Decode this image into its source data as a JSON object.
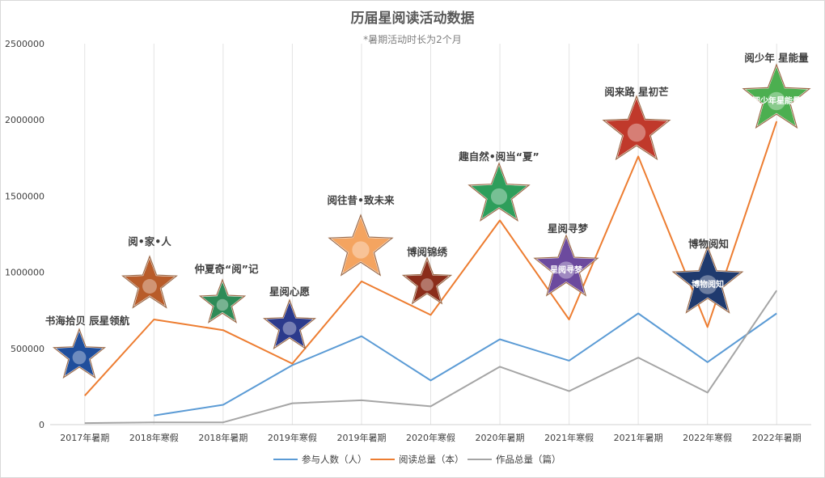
{
  "chart_data": {
    "type": "line",
    "title": "历届星阅读活动数据",
    "subtitle": "*暑期活动时长为2个月",
    "categories": [
      "2017年暑期",
      "2018年寒假",
      "2018年暑期",
      "2019年寒假",
      "2019年暑期",
      "2020年寒假",
      "2020年暑期",
      "2021年寒假",
      "2021年暑期",
      "2022年寒假",
      "2022年暑期"
    ],
    "yticks": [
      "0",
      "500000",
      "1000000",
      "1500000",
      "2000000",
      "2500000"
    ],
    "ylim": [
      0,
      2500000
    ],
    "grid": "vertical category lines",
    "legend_position": "bottom",
    "series": [
      {
        "name": "参与人数（人）",
        "color": "#5b9bd5",
        "values": [
          null,
          60000,
          130000,
          390000,
          580000,
          290000,
          560000,
          420000,
          730000,
          410000,
          730000
        ]
      },
      {
        "name": "阅读总量（本）",
        "color": "#ed7d31",
        "values": [
          190000,
          690000,
          620000,
          400000,
          940000,
          720000,
          1340000,
          690000,
          1760000,
          640000,
          1990000
        ]
      },
      {
        "name": "作品总量（篇）",
        "color": "#a5a5a5",
        "values": [
          10000,
          15000,
          15000,
          140000,
          160000,
          120000,
          380000,
          220000,
          440000,
          210000,
          880000
        ]
      }
    ],
    "annotations": [
      {
        "text": "书海拾贝 辰星领航",
        "star_color": "#1f4e9c",
        "star_text": ""
      },
      {
        "text": "阅•家•人",
        "star_color": "#b85c2a",
        "star_text": ""
      },
      {
        "text": "仲夏奇“阅”记",
        "star_color": "#2e8b57",
        "star_text": ""
      },
      {
        "text": "星阅心愿",
        "star_color": "#2b3a8c",
        "star_text": ""
      },
      {
        "text": "阅往昔•致未来",
        "star_color": "#f4a460",
        "star_text": ""
      },
      {
        "text": "博阅锦绣",
        "star_color": "#8b2d1a",
        "star_text": ""
      },
      {
        "text": "趣自然•阅当“夏”",
        "star_color": "#2e9e5b",
        "star_text": ""
      },
      {
        "text": "星阅寻梦",
        "star_color": "#6c4a9e",
        "star_text": "星阅寻梦"
      },
      {
        "text": "阅来路 星初芒",
        "star_color": "#c0392b",
        "star_text": ""
      },
      {
        "text": "博物阅知",
        "star_color": "#1f3a6e",
        "star_text": "博物阅知"
      },
      {
        "text": "阅少年 星能量",
        "star_color": "#4caf50",
        "star_text": "阅少年星能量"
      }
    ]
  }
}
